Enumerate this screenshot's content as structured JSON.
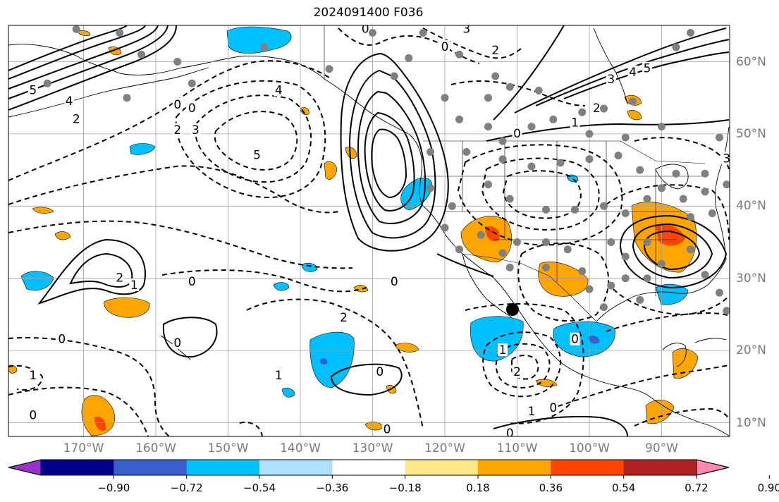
{
  "title": "2024091400 F036",
  "colors": {
    "negative_light": "#b0e0ff",
    "negative": "#00bfff",
    "negative_strong": "#3a5fcd",
    "negative_dark": "#00008b",
    "negative_extreme": "#9932cc",
    "positive_light": "#fee88a",
    "positive": "#ffa500",
    "positive_strong": "#ff4500",
    "positive_dark": "#b22222",
    "positive_extreme": "#ff88b0",
    "contour": "#000000",
    "station_marker": "#808080",
    "grid": "#a0a0a0"
  },
  "map": {
    "projection": "plate-carree",
    "lon_range": [
      -180,
      -80
    ],
    "lat_range": [
      8,
      65
    ],
    "lon_labels": [
      "170°W",
      "160°W",
      "150°W",
      "140°W",
      "130°W",
      "120°W",
      "110°W",
      "100°W",
      "90°W"
    ],
    "lon_values": [
      -170,
      -160,
      -150,
      -140,
      -130,
      -120,
      -110,
      -100,
      -90
    ],
    "lat_labels": [
      "60°N",
      "50°N",
      "40°N",
      "30°N",
      "20°N",
      "10°N"
    ],
    "lat_values": [
      60,
      50,
      40,
      30,
      20,
      10
    ]
  },
  "contour_labels": [
    {
      "text": "5",
      "lon": -177,
      "lat": 56
    },
    {
      "text": "4",
      "lon": -172,
      "lat": 54.5
    },
    {
      "text": "2",
      "lon": -171,
      "lat": 52
    },
    {
      "text": "0",
      "lon": -157,
      "lat": 54
    },
    {
      "text": "0",
      "lon": -155,
      "lat": 53.5
    },
    {
      "text": "2",
      "lon": -157,
      "lat": 50.5
    },
    {
      "text": "3",
      "lon": -154.5,
      "lat": 50.5
    },
    {
      "text": "4",
      "lon": -143,
      "lat": 56
    },
    {
      "text": "5",
      "lon": -146,
      "lat": 47
    },
    {
      "text": "0",
      "lon": -131,
      "lat": 64.5
    },
    {
      "text": "0",
      "lon": -120,
      "lat": 62
    },
    {
      "text": "3",
      "lon": -117,
      "lat": 64.5
    },
    {
      "text": "2",
      "lon": -113,
      "lat": 61.5
    },
    {
      "text": "0",
      "lon": -110,
      "lat": 50
    },
    {
      "text": "3",
      "lon": -97,
      "lat": 57.5
    },
    {
      "text": "4",
      "lon": -94,
      "lat": 58.5
    },
    {
      "text": "5",
      "lon": -92,
      "lat": 59
    },
    {
      "text": "2",
      "lon": -99,
      "lat": 53.5
    },
    {
      "text": "1",
      "lon": -102,
      "lat": 51.5
    },
    {
      "text": "3",
      "lon": -81,
      "lat": 46.5
    },
    {
      "text": "2",
      "lon": -165,
      "lat": 30
    },
    {
      "text": "1",
      "lon": -163,
      "lat": 29
    },
    {
      "text": "0",
      "lon": -155,
      "lat": 29.5
    },
    {
      "text": "0",
      "lon": -173,
      "lat": 21.5
    },
    {
      "text": "0",
      "lon": -157,
      "lat": 21
    },
    {
      "text": "1",
      "lon": -177,
      "lat": 16.5
    },
    {
      "text": "0",
      "lon": -177,
      "lat": 11
    },
    {
      "text": "0",
      "lon": -127,
      "lat": 29.5
    },
    {
      "text": "2",
      "lon": -134,
      "lat": 24.5
    },
    {
      "text": "1",
      "lon": -143,
      "lat": 16.5
    },
    {
      "text": "0",
      "lon": -129,
      "lat": 17
    },
    {
      "text": "0",
      "lon": -128,
      "lat": 9
    },
    {
      "text": "0",
      "lon": -102,
      "lat": 21.5
    },
    {
      "text": "1",
      "lon": -112,
      "lat": 20
    },
    {
      "text": "2",
      "lon": -110,
      "lat": 17
    },
    {
      "text": "1",
      "lon": -108,
      "lat": 11.5
    },
    {
      "text": "0",
      "lon": -105,
      "lat": 12
    },
    {
      "text": "0",
      "lon": -111,
      "lat": 8.5
    }
  ],
  "stations": [
    {
      "lon": -165,
      "lat": 64
    },
    {
      "lon": -162,
      "lat": 61
    },
    {
      "lon": -157,
      "lat": 60
    },
    {
      "lon": -175,
      "lat": 57
    },
    {
      "lon": -164,
      "lat": 55
    },
    {
      "lon": -155,
      "lat": 57
    },
    {
      "lon": -136,
      "lat": 59
    },
    {
      "lon": -130,
      "lat": 64
    },
    {
      "lon": -125,
      "lat": 60.5
    },
    {
      "lon": -127,
      "lat": 58
    },
    {
      "lon": -123,
      "lat": 64
    },
    {
      "lon": -118,
      "lat": 61
    },
    {
      "lon": -113,
      "lat": 58
    },
    {
      "lon": -114,
      "lat": 55
    },
    {
      "lon": -111,
      "lat": 56.5
    },
    {
      "lon": -107,
      "lat": 56
    },
    {
      "lon": -105,
      "lat": 52
    },
    {
      "lon": -101,
      "lat": 53
    },
    {
      "lon": -98,
      "lat": 53.5
    },
    {
      "lon": -94,
      "lat": 54.5
    },
    {
      "lon": -88,
      "lat": 62
    },
    {
      "lon": -86,
      "lat": 64
    },
    {
      "lon": -100,
      "lat": 50
    },
    {
      "lon": -95,
      "lat": 49.5
    },
    {
      "lon": -90,
      "lat": 51
    },
    {
      "lon": -82,
      "lat": 49.5
    },
    {
      "lon": -120,
      "lat": 55
    },
    {
      "lon": -118,
      "lat": 52
    },
    {
      "lon": -114,
      "lat": 51
    },
    {
      "lon": -112,
      "lat": 49
    },
    {
      "lon": -108,
      "lat": 51
    },
    {
      "lon": -122,
      "lat": 47.5
    },
    {
      "lon": -117,
      "lat": 47.5
    },
    {
      "lon": -112,
      "lat": 46.5
    },
    {
      "lon": -108,
      "lat": 45.5
    },
    {
      "lon": -104,
      "lat": 46
    },
    {
      "lon": -100,
      "lat": 46.5
    },
    {
      "lon": -96,
      "lat": 47
    },
    {
      "lon": -93,
      "lat": 45
    },
    {
      "lon": -88,
      "lat": 44.5
    },
    {
      "lon": -84,
      "lat": 44.5
    },
    {
      "lon": -84,
      "lat": 42
    },
    {
      "lon": -81,
      "lat": 43
    },
    {
      "lon": -122,
      "lat": 42.5
    },
    {
      "lon": -119,
      "lat": 40
    },
    {
      "lon": -114,
      "lat": 43
    },
    {
      "lon": -111,
      "lat": 41
    },
    {
      "lon": -106,
      "lat": 39.5
    },
    {
      "lon": -102,
      "lat": 39.5
    },
    {
      "lon": -98,
      "lat": 40
    },
    {
      "lon": -95,
      "lat": 39
    },
    {
      "lon": -92,
      "lat": 41
    },
    {
      "lon": -90,
      "lat": 42.5
    },
    {
      "lon": -87,
      "lat": 41
    },
    {
      "lon": -86,
      "lat": 38.5
    },
    {
      "lon": -83,
      "lat": 39
    },
    {
      "lon": -80,
      "lat": 40
    },
    {
      "lon": -118,
      "lat": 34
    },
    {
      "lon": -115,
      "lat": 36
    },
    {
      "lon": -112,
      "lat": 33.5
    },
    {
      "lon": -110,
      "lat": 35
    },
    {
      "lon": -106,
      "lat": 35
    },
    {
      "lon": -103,
      "lat": 34
    },
    {
      "lon": -97,
      "lat": 35
    },
    {
      "lon": -95,
      "lat": 33
    },
    {
      "lon": -92,
      "lat": 35
    },
    {
      "lon": -90,
      "lat": 32
    },
    {
      "lon": -86,
      "lat": 34
    },
    {
      "lon": -106,
      "lat": 31.5
    },
    {
      "lon": -101,
      "lat": 31
    },
    {
      "lon": -97,
      "lat": 29
    },
    {
      "lon": -95,
      "lat": 30
    },
    {
      "lon": -92,
      "lat": 30
    },
    {
      "lon": -84,
      "lat": 30.5
    },
    {
      "lon": -82,
      "lat": 28
    },
    {
      "lon": -81,
      "lat": 25.5
    },
    {
      "lon": -111,
      "lat": 31.5
    },
    {
      "lon": -120,
      "lat": 37
    },
    {
      "lon": -100,
      "lat": 28.5
    },
    {
      "lon": -98,
      "lat": 26
    },
    {
      "lon": -93,
      "lat": 27
    },
    {
      "lon": -171,
      "lat": 64.5
    },
    {
      "lon": -145,
      "lat": 62
    }
  ],
  "colorbar": {
    "ticks": [
      "−0.90",
      "−0.72",
      "−0.54",
      "−0.36",
      "−0.18",
      "0.18",
      "0.36",
      "0.54",
      "0.72",
      "0.90"
    ],
    "bins": [
      {
        "color": "#00008b"
      },
      {
        "color": "#3a5fcd"
      },
      {
        "color": "#00bfff"
      },
      {
        "color": "#b0e0ff"
      },
      {
        "color": "#ffffff"
      },
      {
        "color": "#fee88a"
      },
      {
        "color": "#ffa500"
      },
      {
        "color": "#ff4500"
      },
      {
        "color": "#b22222"
      }
    ],
    "under_color": "#9932cc",
    "over_color": "#ff88b0"
  }
}
